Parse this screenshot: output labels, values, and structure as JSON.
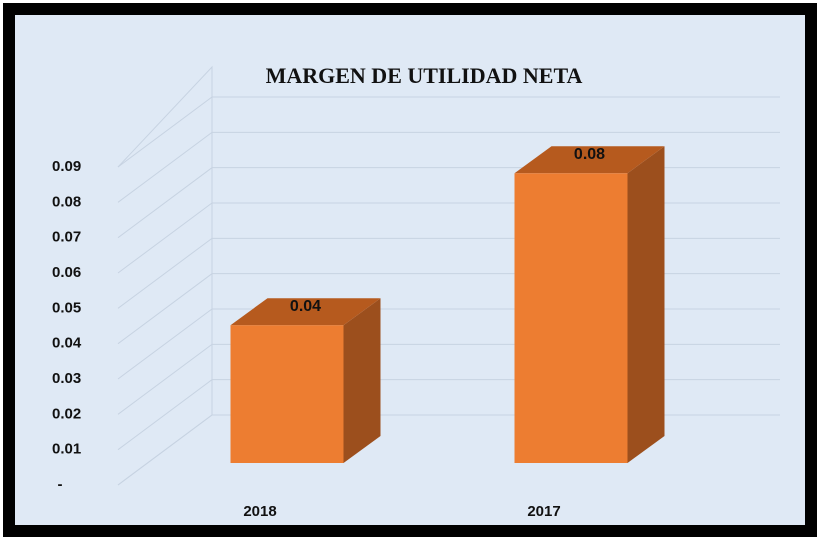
{
  "chart_data": {
    "type": "bar",
    "title": "MARGEN DE UTILIDAD NETA",
    "categories": [
      "2018",
      "2017"
    ],
    "values": [
      0.039,
      0.082
    ],
    "value_labels": [
      "0.04",
      "0.08"
    ],
    "color": "#ed7d31",
    "ylim": [
      0,
      0.09
    ],
    "yticks": [
      {
        "value": 0,
        "label": "-"
      },
      0.01,
      0.02,
      0.03,
      0.04,
      0.05,
      0.06,
      0.07,
      0.08,
      0.09
    ],
    "grid": true
  }
}
